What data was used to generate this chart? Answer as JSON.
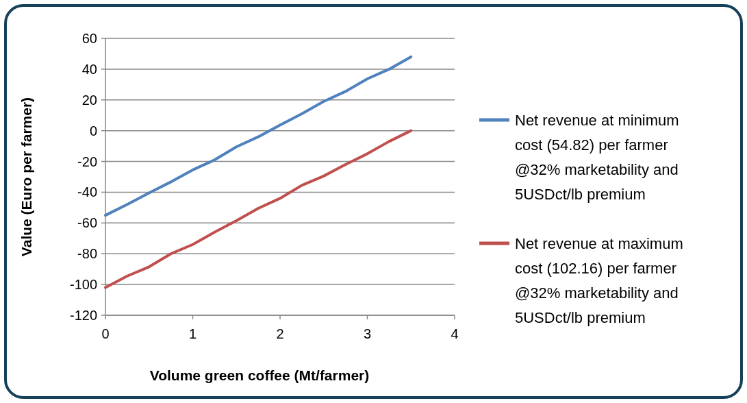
{
  "chart_data": {
    "type": "line",
    "xlabel": "Volume green coffee (Mt/farmer)",
    "ylabel": "Value (Euro per farmer)",
    "x": [
      0,
      0.25,
      0.5,
      0.75,
      1,
      1.25,
      1.5,
      1.75,
      2,
      2.25,
      2.5,
      2.75,
      3,
      3.25,
      3.5
    ],
    "series": [
      {
        "name": "Net revenue at minimum cost (54.82) per farmer @32% marketability and 5USDct/lb premium",
        "color": "#4f81bd",
        "values": [
          -55,
          -47.9,
          -40.5,
          -33.3,
          -25.5,
          -19,
          -10.5,
          -4,
          3.6,
          11,
          19,
          25.5,
          33.7,
          40,
          48
        ]
      },
      {
        "name": "Net revenue at maximum cost (102.16) per farmer @32% marketability and 5USDct/lb premium",
        "color": "#c0504d",
        "values": [
          -102,
          -94.5,
          -88.5,
          -80,
          -74,
          -66,
          -58.5,
          -50.5,
          -44,
          -35.5,
          -29.5,
          -22,
          -15,
          -7,
          0
        ]
      }
    ],
    "xlim": [
      0,
      4
    ],
    "xticks": [
      0,
      1,
      2,
      3,
      4
    ],
    "ylim": [
      -120,
      60
    ],
    "yticks": [
      -120,
      -100,
      -80,
      -60,
      -40,
      -20,
      0,
      20,
      40,
      60
    ],
    "grid": "y",
    "legend": "right",
    "marker": "none",
    "line_style": "solid"
  }
}
